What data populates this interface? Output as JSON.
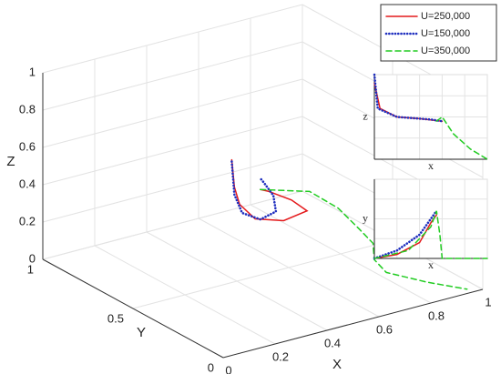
{
  "chart_data": [
    {
      "type": "line3d",
      "xlabel": "X",
      "ylabel": "Y",
      "zlabel": "Z",
      "xlim": [
        0,
        1
      ],
      "ylim": [
        0,
        1
      ],
      "zlim": [
        0,
        1
      ],
      "xticks": [
        0,
        0.2,
        0.4,
        0.6,
        0.8,
        1
      ],
      "yticks": [
        0,
        0.5,
        1
      ],
      "zticks": [
        0,
        0.2,
        0.4,
        0.6,
        0.8,
        1
      ],
      "grid": true,
      "legend": "upper right",
      "series": [
        {
          "name": "U=250,000",
          "color": "#e41a1c",
          "style": "solid",
          "x": [
            0.45,
            0.46,
            0.48,
            0.54,
            0.65,
            0.74,
            0.68,
            0.59,
            0.56
          ],
          "y": [
            0.6,
            0.6,
            0.6,
            0.6,
            0.6,
            0.6,
            0.6,
            0.6,
            0.6
          ],
          "z": [
            0.58,
            0.43,
            0.33,
            0.23,
            0.18,
            0.2,
            0.28,
            0.36,
            0.38
          ]
        },
        {
          "name": "U=150,000",
          "color": "#1f2fbf",
          "style": "dotted",
          "x": [
            0.45,
            0.46,
            0.49,
            0.56,
            0.62,
            0.61,
            0.57,
            0.56
          ],
          "y": [
            0.6,
            0.6,
            0.6,
            0.6,
            0.6,
            0.6,
            0.6,
            0.6
          ],
          "z": [
            0.57,
            0.39,
            0.28,
            0.22,
            0.24,
            0.33,
            0.42,
            0.44
          ]
        },
        {
          "name": "U=350,000",
          "color": "#22cc22",
          "style": "dashed",
          "x": [
            0.56,
            0.75,
            0.86,
            0.87,
            0.89,
            0.86,
            0.83,
            0.89,
            0.96
          ],
          "y": [
            0.6,
            0.6,
            0.6,
            0.5,
            0.45,
            0.4,
            0.29,
            0.15,
            0.03
          ],
          "z": [
            0.38,
            0.3,
            0.17,
            0.11,
            0.05,
            0,
            0,
            0,
            0
          ]
        }
      ]
    },
    {
      "type": "line",
      "xlabel": "x",
      "ylabel": "z",
      "xlim": [
        0,
        1
      ],
      "ylim": [
        0,
        1
      ],
      "grid": true,
      "series": [
        {
          "color": "#e41a1c",
          "style": "solid",
          "x": [
            0,
            0.05,
            0.2,
            0.4,
            0.6
          ],
          "values": [
            0.9,
            0.6,
            0.5,
            0.48,
            0.45
          ]
        },
        {
          "color": "#1f2fbf",
          "style": "dotted",
          "x": [
            0,
            0.03,
            0.2,
            0.5,
            0.6
          ],
          "values": [
            1,
            0.6,
            0.5,
            0.47,
            0.45
          ]
        },
        {
          "color": "#22cc22",
          "style": "dashed",
          "x": [
            0.55,
            0.6,
            0.7,
            0.85,
            1
          ],
          "values": [
            0.45,
            0.5,
            0.3,
            0.12,
            0
          ]
        }
      ]
    },
    {
      "type": "line",
      "xlabel": "x",
      "ylabel": "y",
      "xlim": [
        0,
        1
      ],
      "ylim": [
        0,
        1
      ],
      "grid": true,
      "series": [
        {
          "color": "#e41a1c",
          "style": "solid",
          "x": [
            0,
            0.2,
            0.4,
            0.5,
            0.55
          ],
          "values": [
            0,
            0.05,
            0.2,
            0.45,
            0.55
          ]
        },
        {
          "color": "#1f2fbf",
          "style": "dotted",
          "x": [
            0,
            0.2,
            0.4,
            0.55
          ],
          "values": [
            0,
            0.1,
            0.3,
            0.6
          ]
        },
        {
          "color": "#22cc22",
          "style": "dashed",
          "x": [
            0,
            0.3,
            0.5,
            0.55,
            0.58,
            0.6,
            1
          ],
          "values": [
            0,
            0.1,
            0.4,
            0.6,
            0.3,
            0,
            0
          ]
        }
      ]
    }
  ]
}
